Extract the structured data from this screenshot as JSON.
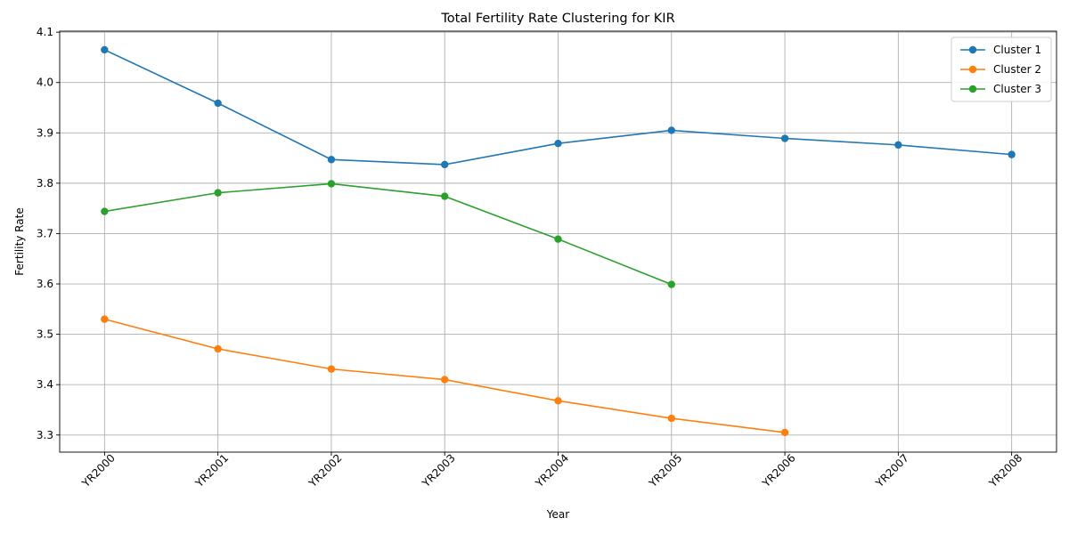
{
  "chart_data": {
    "type": "line",
    "title": "Total Fertility Rate Clustering for KIR",
    "xlabel": "Year",
    "ylabel": "Fertility Rate",
    "categories": [
      "YR2000",
      "YR2001",
      "YR2002",
      "YR2003",
      "YR2004",
      "YR2005",
      "YR2006",
      "YR2007",
      "YR2008"
    ],
    "ylim": [
      3.266,
      4.102
    ],
    "yticks": [
      3.3,
      3.4,
      3.5,
      3.6,
      3.7,
      3.8,
      3.9,
      4.0,
      4.1
    ],
    "ytick_labels": [
      "3.3",
      "3.4",
      "3.5",
      "3.6",
      "3.7",
      "3.8",
      "3.9",
      "4.0",
      "4.1"
    ],
    "grid": true,
    "legend_position": "top-right",
    "series": [
      {
        "name": "Cluster 1",
        "color": "#1f77b4",
        "values": [
          4.065,
          3.959,
          3.847,
          3.837,
          3.879,
          3.905,
          3.889,
          3.876,
          3.857
        ]
      },
      {
        "name": "Cluster 2",
        "color": "#ff7f0e",
        "values": [
          3.53,
          3.471,
          3.431,
          3.41,
          3.368,
          3.333,
          3.305,
          null,
          null
        ]
      },
      {
        "name": "Cluster 3",
        "color": "#2ca02c",
        "values": [
          3.744,
          3.781,
          3.799,
          3.774,
          3.689,
          3.599,
          null,
          null,
          null
        ]
      }
    ]
  }
}
